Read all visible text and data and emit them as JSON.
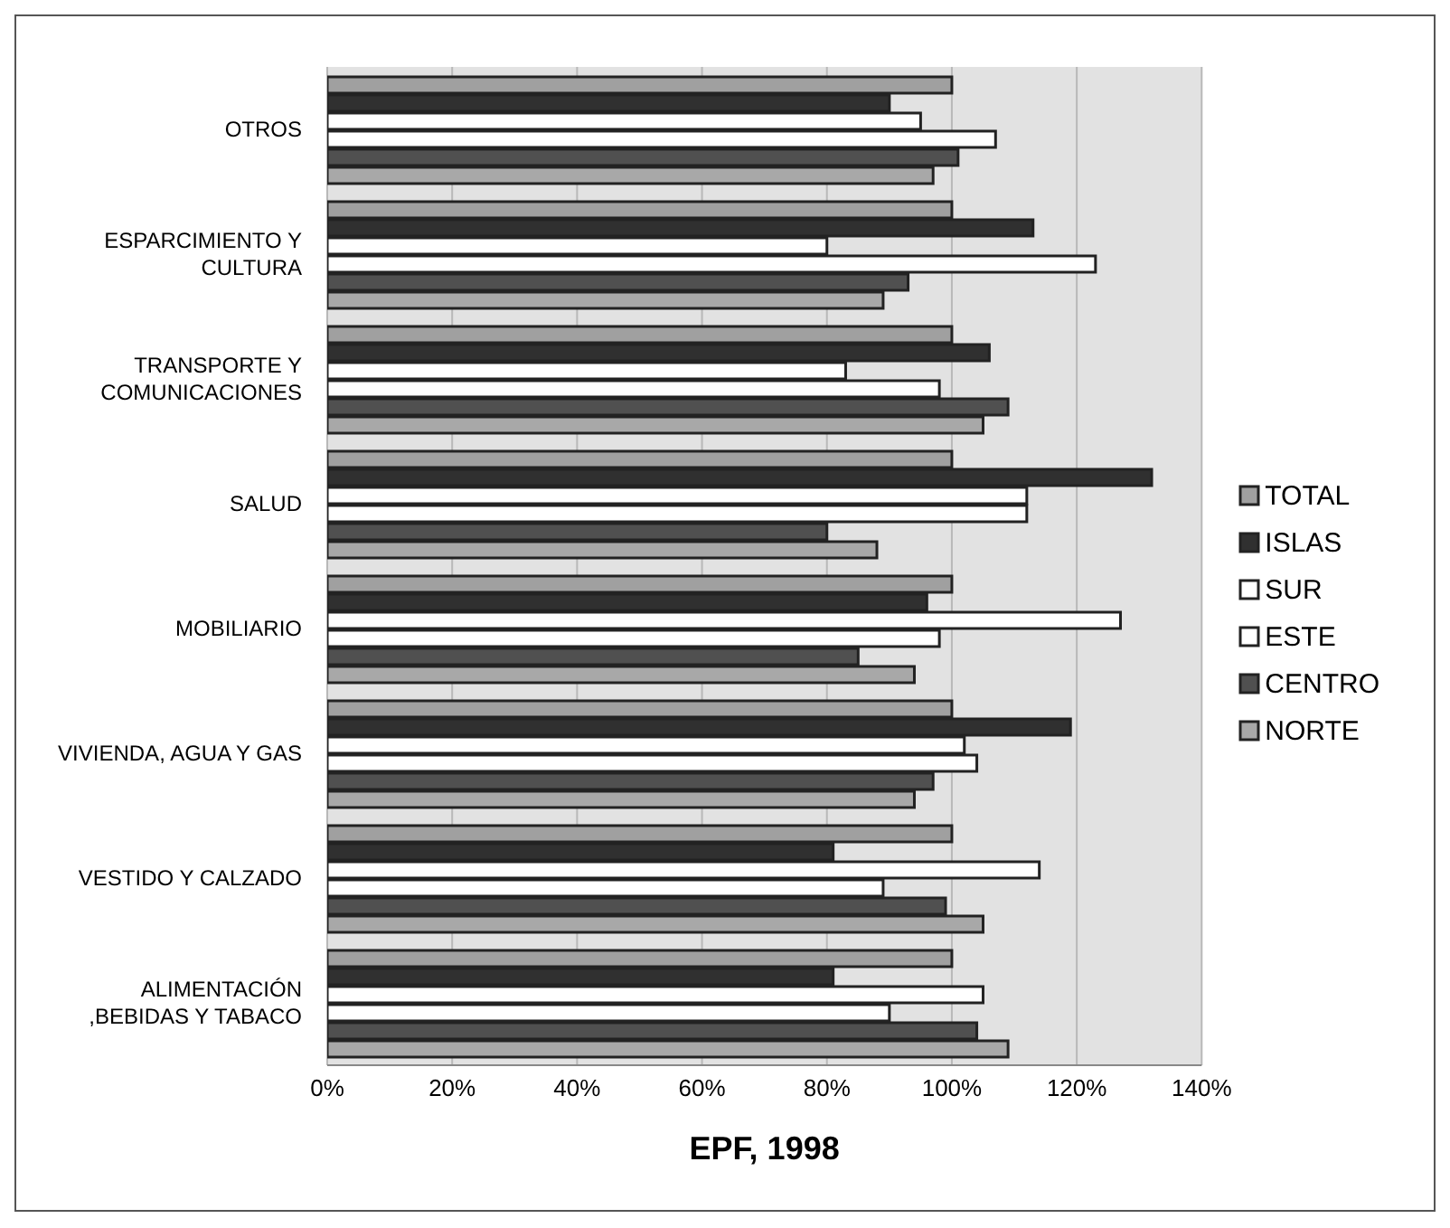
{
  "chart_data": {
    "type": "bar",
    "orientation": "horizontal",
    "xlabel": "EPF, 1998",
    "categories": [
      "OTROS",
      "ESPARCIMIENTO Y CULTURA",
      "TRANSPORTE Y COMUNICACIONES",
      "SALUD",
      "MOBILIARIO",
      "VIVIENDA, AGUA Y GAS",
      "VESTIDO Y CALZADO",
      "ALIMENTACIÓN ,BEBIDAS Y TABACO"
    ],
    "series": [
      {
        "name": "TOTAL",
        "color": "#a0a0a0",
        "values": [
          100,
          100,
          100,
          100,
          100,
          100,
          100,
          100
        ]
      },
      {
        "name": "ISLAS",
        "color": "#303030",
        "values": [
          90,
          113,
          106,
          132,
          96,
          119,
          81,
          81
        ]
      },
      {
        "name": "SUR",
        "color": "#ffffff",
        "values": [
          95,
          80,
          83,
          112,
          127,
          102,
          114,
          105
        ]
      },
      {
        "name": "ESTE",
        "color": "#ffffff",
        "values": [
          107,
          123,
          98,
          112,
          98,
          104,
          89,
          90
        ]
      },
      {
        "name": "CENTRO",
        "color": "#505050",
        "values": [
          101,
          93,
          109,
          80,
          85,
          97,
          99,
          104
        ]
      },
      {
        "name": "NORTE",
        "color": "#a8a8a8",
        "values": [
          97,
          89,
          105,
          88,
          94,
          94,
          105,
          109
        ]
      }
    ],
    "xlim": [
      0,
      140
    ],
    "xticks": [
      {
        "value": 0,
        "label": "0%"
      },
      {
        "value": 20,
        "label": "20%"
      },
      {
        "value": 40,
        "label": "40%"
      },
      {
        "value": 60,
        "label": "60%"
      },
      {
        "value": 80,
        "label": "80%"
      },
      {
        "value": 100,
        "label": "100%"
      },
      {
        "value": 120,
        "label": "120%"
      },
      {
        "value": 140,
        "label": "140%"
      }
    ],
    "grid": "x",
    "legend": "right"
  }
}
